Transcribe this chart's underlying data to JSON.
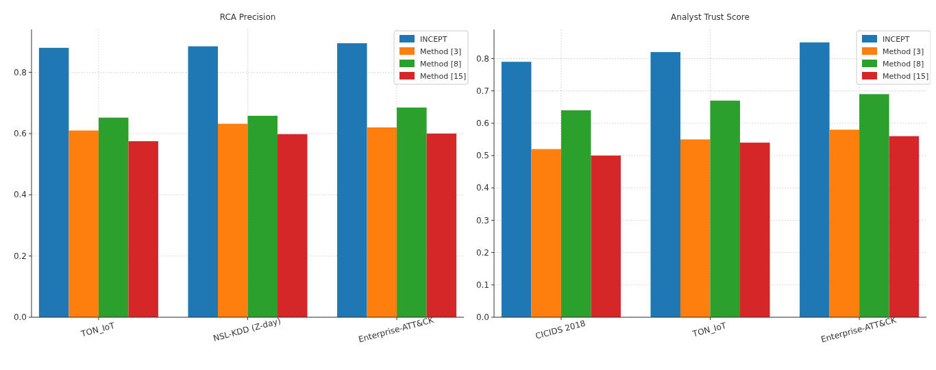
{
  "chart_data": [
    {
      "type": "bar",
      "title": "RCA Precision",
      "categories": [
        "TON_IoT",
        "NSL-KDD (Z-day)",
        "Enterprise-ATT&CK"
      ],
      "series": [
        {
          "name": "INCEPT",
          "color": "#1f77b4",
          "values": [
            0.88,
            0.885,
            0.895
          ]
        },
        {
          "name": "Method [3]",
          "color": "#ff7f0e",
          "values": [
            0.61,
            0.632,
            0.62
          ]
        },
        {
          "name": "Method [8]",
          "color": "#2ca02c",
          "values": [
            0.652,
            0.658,
            0.685
          ]
        },
        {
          "name": "Method [15]",
          "color": "#d62728",
          "values": [
            0.575,
            0.598,
            0.6
          ]
        }
      ],
      "ylim": [
        0,
        0.94
      ],
      "yticks": [
        {
          "value": 0,
          "label": "0.0"
        },
        0.2,
        0.4,
        0.6,
        0.8
      ],
      "grid": true,
      "legend": "top right"
    },
    {
      "type": "bar",
      "title": "Analyst Trust Score",
      "categories": [
        "CICIDS 2018",
        "TON_IoT",
        "Enterprise-ATT&CK"
      ],
      "series": [
        {
          "name": "INCEPT",
          "color": "#1f77b4",
          "values": [
            0.79,
            0.82,
            0.85
          ]
        },
        {
          "name": "Method [3]",
          "color": "#ff7f0e",
          "values": [
            0.52,
            0.55,
            0.58
          ]
        },
        {
          "name": "Method [8]",
          "color": "#2ca02c",
          "values": [
            0.64,
            0.67,
            0.69
          ]
        },
        {
          "name": "Method [15]",
          "color": "#d62728",
          "values": [
            0.5,
            0.54,
            0.56
          ]
        }
      ],
      "ylim": [
        0,
        0.89
      ],
      "yticks": [
        {
          "value": 0,
          "label": "0.0"
        },
        0.1,
        0.2,
        0.3,
        0.4,
        0.5,
        0.6,
        0.7,
        0.8
      ],
      "grid": true,
      "legend": "top right"
    }
  ]
}
